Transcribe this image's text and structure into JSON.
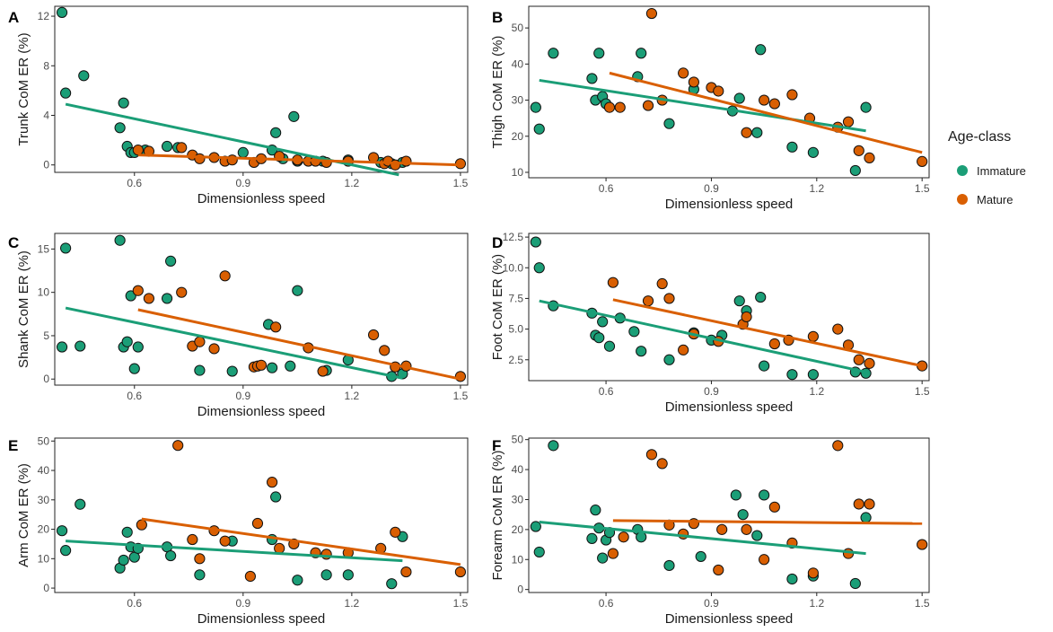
{
  "colors": {
    "immature": "#1b9e77",
    "mature": "#d95f02",
    "point_edge": "#111111",
    "axis": "#222222"
  },
  "legend": {
    "title": "Age-class",
    "items": [
      {
        "label": "Immature",
        "color": "#1b9e77"
      },
      {
        "label": "Mature",
        "color": "#d95f02"
      }
    ]
  },
  "chart_data": [
    {
      "panel": "A",
      "type": "scatter",
      "xlabel": "Dimensionless speed",
      "ylabel": "Trunk CoM ER (%)",
      "xlim": [
        0.38,
        1.52
      ],
      "ylim": [
        -0.6,
        12.8
      ],
      "xticks": [
        0.6,
        0.9,
        1.2,
        1.5
      ],
      "yticks": [
        0,
        4,
        8,
        12
      ],
      "series": [
        {
          "name": "Immature",
          "color": "#1b9e77",
          "x": [
            0.4,
            0.41,
            0.46,
            0.56,
            0.57,
            0.58,
            0.59,
            0.6,
            0.63,
            0.69,
            0.72,
            0.9,
            0.98,
            0.99,
            1.01,
            1.04,
            1.05,
            1.12,
            1.19,
            1.28,
            1.31,
            1.34
          ],
          "y": [
            12.3,
            5.8,
            7.2,
            3.0,
            5.0,
            1.5,
            1.0,
            1.0,
            1.2,
            1.5,
            1.4,
            1.0,
            1.2,
            2.6,
            0.5,
            3.9,
            0.3,
            0.3,
            0.4,
            0.2,
            0.1,
            0.2
          ],
          "fit": [
            [
              0.41,
              4.9
            ],
            [
              1.33,
              -0.8
            ]
          ]
        },
        {
          "name": "Mature",
          "color": "#d95f02",
          "x": [
            0.61,
            0.64,
            0.73,
            0.76,
            0.78,
            0.82,
            0.85,
            0.87,
            0.93,
            0.95,
            1.0,
            1.05,
            1.08,
            1.1,
            1.13,
            1.19,
            1.26,
            1.29,
            1.3,
            1.32,
            1.35,
            1.5
          ],
          "y": [
            1.2,
            1.1,
            1.4,
            0.8,
            0.5,
            0.6,
            0.3,
            0.4,
            0.2,
            0.5,
            0.7,
            0.4,
            0.3,
            0.3,
            0.2,
            0.3,
            0.6,
            0.1,
            0.3,
            0.0,
            0.3,
            0.1
          ],
          "fit": [
            [
              0.61,
              0.8
            ],
            [
              1.5,
              0.0
            ]
          ]
        }
      ]
    },
    {
      "panel": "B",
      "type": "scatter",
      "xlabel": "Dimensionless speed",
      "ylabel": "Thigh CoM ER (%)",
      "xlim": [
        0.38,
        1.52
      ],
      "ylim": [
        8.5,
        56
      ],
      "xticks": [
        0.6,
        0.9,
        1.2,
        1.5
      ],
      "yticks": [
        10,
        20,
        30,
        40,
        50
      ],
      "series": [
        {
          "name": "Immature",
          "color": "#1b9e77",
          "x": [
            0.4,
            0.41,
            0.45,
            0.56,
            0.57,
            0.58,
            0.59,
            0.6,
            0.69,
            0.7,
            0.78,
            0.85,
            0.96,
            0.98,
            1.03,
            1.04,
            1.13,
            1.19,
            1.31,
            1.34
          ],
          "y": [
            28,
            22,
            43,
            36,
            30,
            43,
            31,
            29,
            36.5,
            43,
            23.5,
            33,
            27,
            30.5,
            21,
            44,
            17,
            15.5,
            10.5,
            28
          ],
          "fit": [
            [
              0.41,
              35.5
            ],
            [
              1.34,
              21.5
            ]
          ]
        },
        {
          "name": "Mature",
          "color": "#d95f02",
          "x": [
            0.61,
            0.64,
            0.72,
            0.73,
            0.76,
            0.82,
            0.85,
            0.9,
            0.92,
            1.0,
            1.05,
            1.08,
            1.13,
            1.18,
            1.26,
            1.29,
            1.32,
            1.35,
            1.5
          ],
          "y": [
            28,
            28,
            28.5,
            54,
            30,
            37.5,
            35,
            33.5,
            32.5,
            21,
            30,
            29,
            31.5,
            25,
            22.5,
            24,
            16,
            14,
            13
          ],
          "fit": [
            [
              0.61,
              37.5
            ],
            [
              1.5,
              15.5
            ]
          ]
        }
      ]
    },
    {
      "panel": "C",
      "type": "scatter",
      "xlabel": "Dimensionless speed",
      "ylabel": "Shank CoM ER (%)",
      "xlim": [
        0.38,
        1.52
      ],
      "ylim": [
        -0.7,
        16.8
      ],
      "xticks": [
        0.6,
        0.9,
        1.2,
        1.5
      ],
      "yticks": [
        0,
        5,
        10,
        15
      ],
      "series": [
        {
          "name": "Immature",
          "color": "#1b9e77",
          "x": [
            0.4,
            0.41,
            0.45,
            0.56,
            0.57,
            0.58,
            0.59,
            0.6,
            0.61,
            0.69,
            0.7,
            0.78,
            0.87,
            0.97,
            0.98,
            1.03,
            1.05,
            1.13,
            1.19,
            1.31,
            1.34
          ],
          "y": [
            3.7,
            15.1,
            3.8,
            16.0,
            3.7,
            4.3,
            9.6,
            1.2,
            3.7,
            9.3,
            13.6,
            1.0,
            0.9,
            6.3,
            1.3,
            1.5,
            10.2,
            1.0,
            2.2,
            0.3,
            0.6
          ],
          "fit": [
            [
              0.41,
              8.2
            ],
            [
              1.34,
              0.1
            ]
          ]
        },
        {
          "name": "Mature",
          "color": "#d95f02",
          "x": [
            0.61,
            0.64,
            0.73,
            0.76,
            0.78,
            0.82,
            0.85,
            0.93,
            0.94,
            0.95,
            0.99,
            1.08,
            1.12,
            1.26,
            1.29,
            1.32,
            1.35,
            1.5
          ],
          "y": [
            10.2,
            9.3,
            10.0,
            3.8,
            4.3,
            3.5,
            11.9,
            1.4,
            1.5,
            1.6,
            6.0,
            3.6,
            0.9,
            5.1,
            3.3,
            1.4,
            1.5,
            0.3
          ],
          "fit": [
            [
              0.61,
              8.0
            ],
            [
              1.5,
              0.0
            ]
          ]
        }
      ]
    },
    {
      "panel": "D",
      "type": "scatter",
      "xlabel": "Dimensionless speed",
      "ylabel": "Foot CoM ER (%)",
      "xlim": [
        0.38,
        1.52
      ],
      "ylim": [
        0.8,
        12.8
      ],
      "xticks": [
        0.6,
        0.9,
        1.2,
        1.5
      ],
      "yticks": [
        2.5,
        5.0,
        7.5,
        10.0,
        12.5
      ],
      "series": [
        {
          "name": "Immature",
          "color": "#1b9e77",
          "x": [
            0.4,
            0.41,
            0.45,
            0.56,
            0.57,
            0.58,
            0.59,
            0.61,
            0.64,
            0.68,
            0.7,
            0.78,
            0.85,
            0.9,
            0.93,
            0.98,
            1.0,
            1.04,
            1.05,
            1.13,
            1.19,
            1.31,
            1.34
          ],
          "y": [
            12.1,
            10.0,
            6.9,
            6.3,
            4.5,
            4.3,
            5.6,
            3.6,
            5.9,
            4.8,
            3.2,
            2.5,
            4.7,
            4.1,
            4.5,
            7.3,
            6.5,
            7.6,
            2.0,
            1.3,
            1.3,
            1.5,
            1.4
          ],
          "fit": [
            [
              0.41,
              7.3
            ],
            [
              1.34,
              1.5
            ]
          ]
        },
        {
          "name": "Mature",
          "color": "#d95f02",
          "x": [
            0.62,
            0.72,
            0.76,
            0.78,
            0.82,
            0.85,
            0.92,
            0.99,
            1.0,
            1.08,
            1.12,
            1.19,
            1.26,
            1.29,
            1.32,
            1.35,
            1.5
          ],
          "y": [
            8.8,
            7.3,
            8.7,
            7.5,
            3.3,
            4.6,
            4.0,
            5.4,
            6.0,
            3.8,
            4.1,
            4.4,
            5.0,
            3.7,
            2.5,
            2.2,
            2.0
          ],
          "fit": [
            [
              0.62,
              7.4
            ],
            [
              1.5,
              2.0
            ]
          ]
        }
      ]
    },
    {
      "panel": "E",
      "type": "scatter",
      "xlabel": "Dimensionless speed",
      "ylabel": "Arm CoM ER (%)",
      "xlim": [
        0.38,
        1.52
      ],
      "ylim": [
        -1.5,
        51
      ],
      "xticks": [
        0.6,
        0.9,
        1.2,
        1.5
      ],
      "yticks": [
        0,
        10,
        20,
        30,
        40,
        50
      ],
      "series": [
        {
          "name": "Immature",
          "color": "#1b9e77",
          "x": [
            0.4,
            0.41,
            0.45,
            0.56,
            0.57,
            0.58,
            0.59,
            0.6,
            0.61,
            0.69,
            0.7,
            0.78,
            0.87,
            0.98,
            0.99,
            1.05,
            1.13,
            1.19,
            1.31,
            1.34
          ],
          "y": [
            19.5,
            12.8,
            28.5,
            6.8,
            9.5,
            19.0,
            14.0,
            10.5,
            13.5,
            14.0,
            11.0,
            4.5,
            16.0,
            16.5,
            31.0,
            2.7,
            4.5,
            4.5,
            1.5,
            17.5
          ],
          "fit": [
            [
              0.41,
              16.0
            ],
            [
              1.34,
              9.3
            ]
          ]
        },
        {
          "name": "Mature",
          "color": "#d95f02",
          "x": [
            0.62,
            0.72,
            0.76,
            0.78,
            0.82,
            0.85,
            0.92,
            0.94,
            0.98,
            1.0,
            1.04,
            1.1,
            1.13,
            1.19,
            1.28,
            1.32,
            1.35,
            1.5
          ],
          "y": [
            21.5,
            48.5,
            16.5,
            10.0,
            19.5,
            16.0,
            4.0,
            22.0,
            36.0,
            13.5,
            15.0,
            12.0,
            11.5,
            12.0,
            13.5,
            19.0,
            5.5,
            5.5
          ],
          "fit": [
            [
              0.62,
              23.5
            ],
            [
              1.5,
              8.0
            ]
          ]
        }
      ]
    },
    {
      "panel": "F",
      "type": "scatter",
      "xlabel": "Dimensionless speed",
      "ylabel": "Forearm CoM ER (%)",
      "xlim": [
        0.38,
        1.52
      ],
      "ylim": [
        -1,
        50.5
      ],
      "xticks": [
        0.6,
        0.9,
        1.2,
        1.5
      ],
      "yticks": [
        0,
        10,
        20,
        30,
        40,
        50
      ],
      "series": [
        {
          "name": "Immature",
          "color": "#1b9e77",
          "x": [
            0.4,
            0.41,
            0.45,
            0.56,
            0.57,
            0.58,
            0.59,
            0.6,
            0.61,
            0.69,
            0.7,
            0.78,
            0.87,
            0.97,
            0.99,
            1.03,
            1.05,
            1.13,
            1.19,
            1.31,
            1.34
          ],
          "y": [
            21,
            12.5,
            48,
            17,
            26.5,
            20.5,
            10.5,
            16.5,
            19,
            20,
            17.5,
            8,
            11,
            31.5,
            25,
            18,
            31.5,
            3.5,
            4.5,
            2,
            24
          ],
          "fit": [
            [
              0.41,
              22.5
            ],
            [
              1.34,
              12.0
            ]
          ]
        },
        {
          "name": "Mature",
          "color": "#d95f02",
          "x": [
            0.62,
            0.65,
            0.73,
            0.76,
            0.78,
            0.82,
            0.85,
            0.92,
            0.93,
            1.0,
            1.05,
            1.08,
            1.13,
            1.19,
            1.26,
            1.29,
            1.32,
            1.35,
            1.5
          ],
          "y": [
            12,
            17.5,
            45,
            42,
            21.5,
            18.5,
            22,
            6.5,
            20,
            20,
            10,
            27.5,
            15.5,
            5.5,
            48,
            12,
            28.5,
            28.5,
            15
          ],
          "fit": [
            [
              0.62,
              23.0
            ],
            [
              1.5,
              22.0
            ]
          ]
        }
      ]
    }
  ]
}
